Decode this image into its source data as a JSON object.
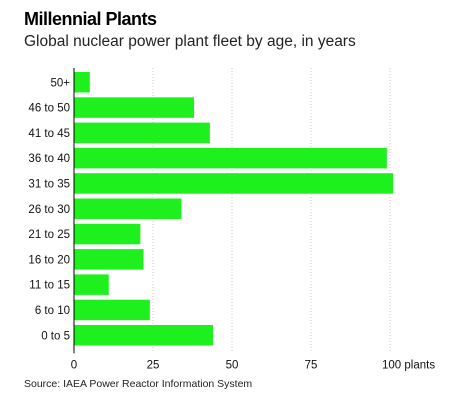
{
  "header": {
    "title": "Millennial Plants",
    "subtitle": "Global nuclear power plant fleet by age, in years"
  },
  "footer": {
    "source": "Source: IAEA Power Reactor Information System"
  },
  "colors": {
    "bar": "#1ef01e",
    "gridline": "#c8c8c8",
    "axis": "#000000"
  },
  "chart_data": {
    "type": "bar",
    "orientation": "horizontal",
    "title": "Millennial Plants",
    "subtitle": "Global nuclear power plant fleet by age, in years",
    "categories": [
      "50+",
      "46 to 50",
      "41 to 45",
      "36 to 40",
      "31 to 35",
      "26 to 30",
      "21 to 25",
      "16 to 20",
      "11 to 15",
      "6 to 10",
      "0 to 5"
    ],
    "values": [
      5,
      38,
      43,
      99,
      101,
      34,
      21,
      22,
      11,
      24,
      44
    ],
    "xlim": [
      0,
      100
    ],
    "xticks": [
      0,
      25,
      50,
      75,
      100
    ],
    "xtick_labels": [
      "0",
      "25",
      "50",
      "75",
      "100 plants"
    ],
    "grid": true
  }
}
